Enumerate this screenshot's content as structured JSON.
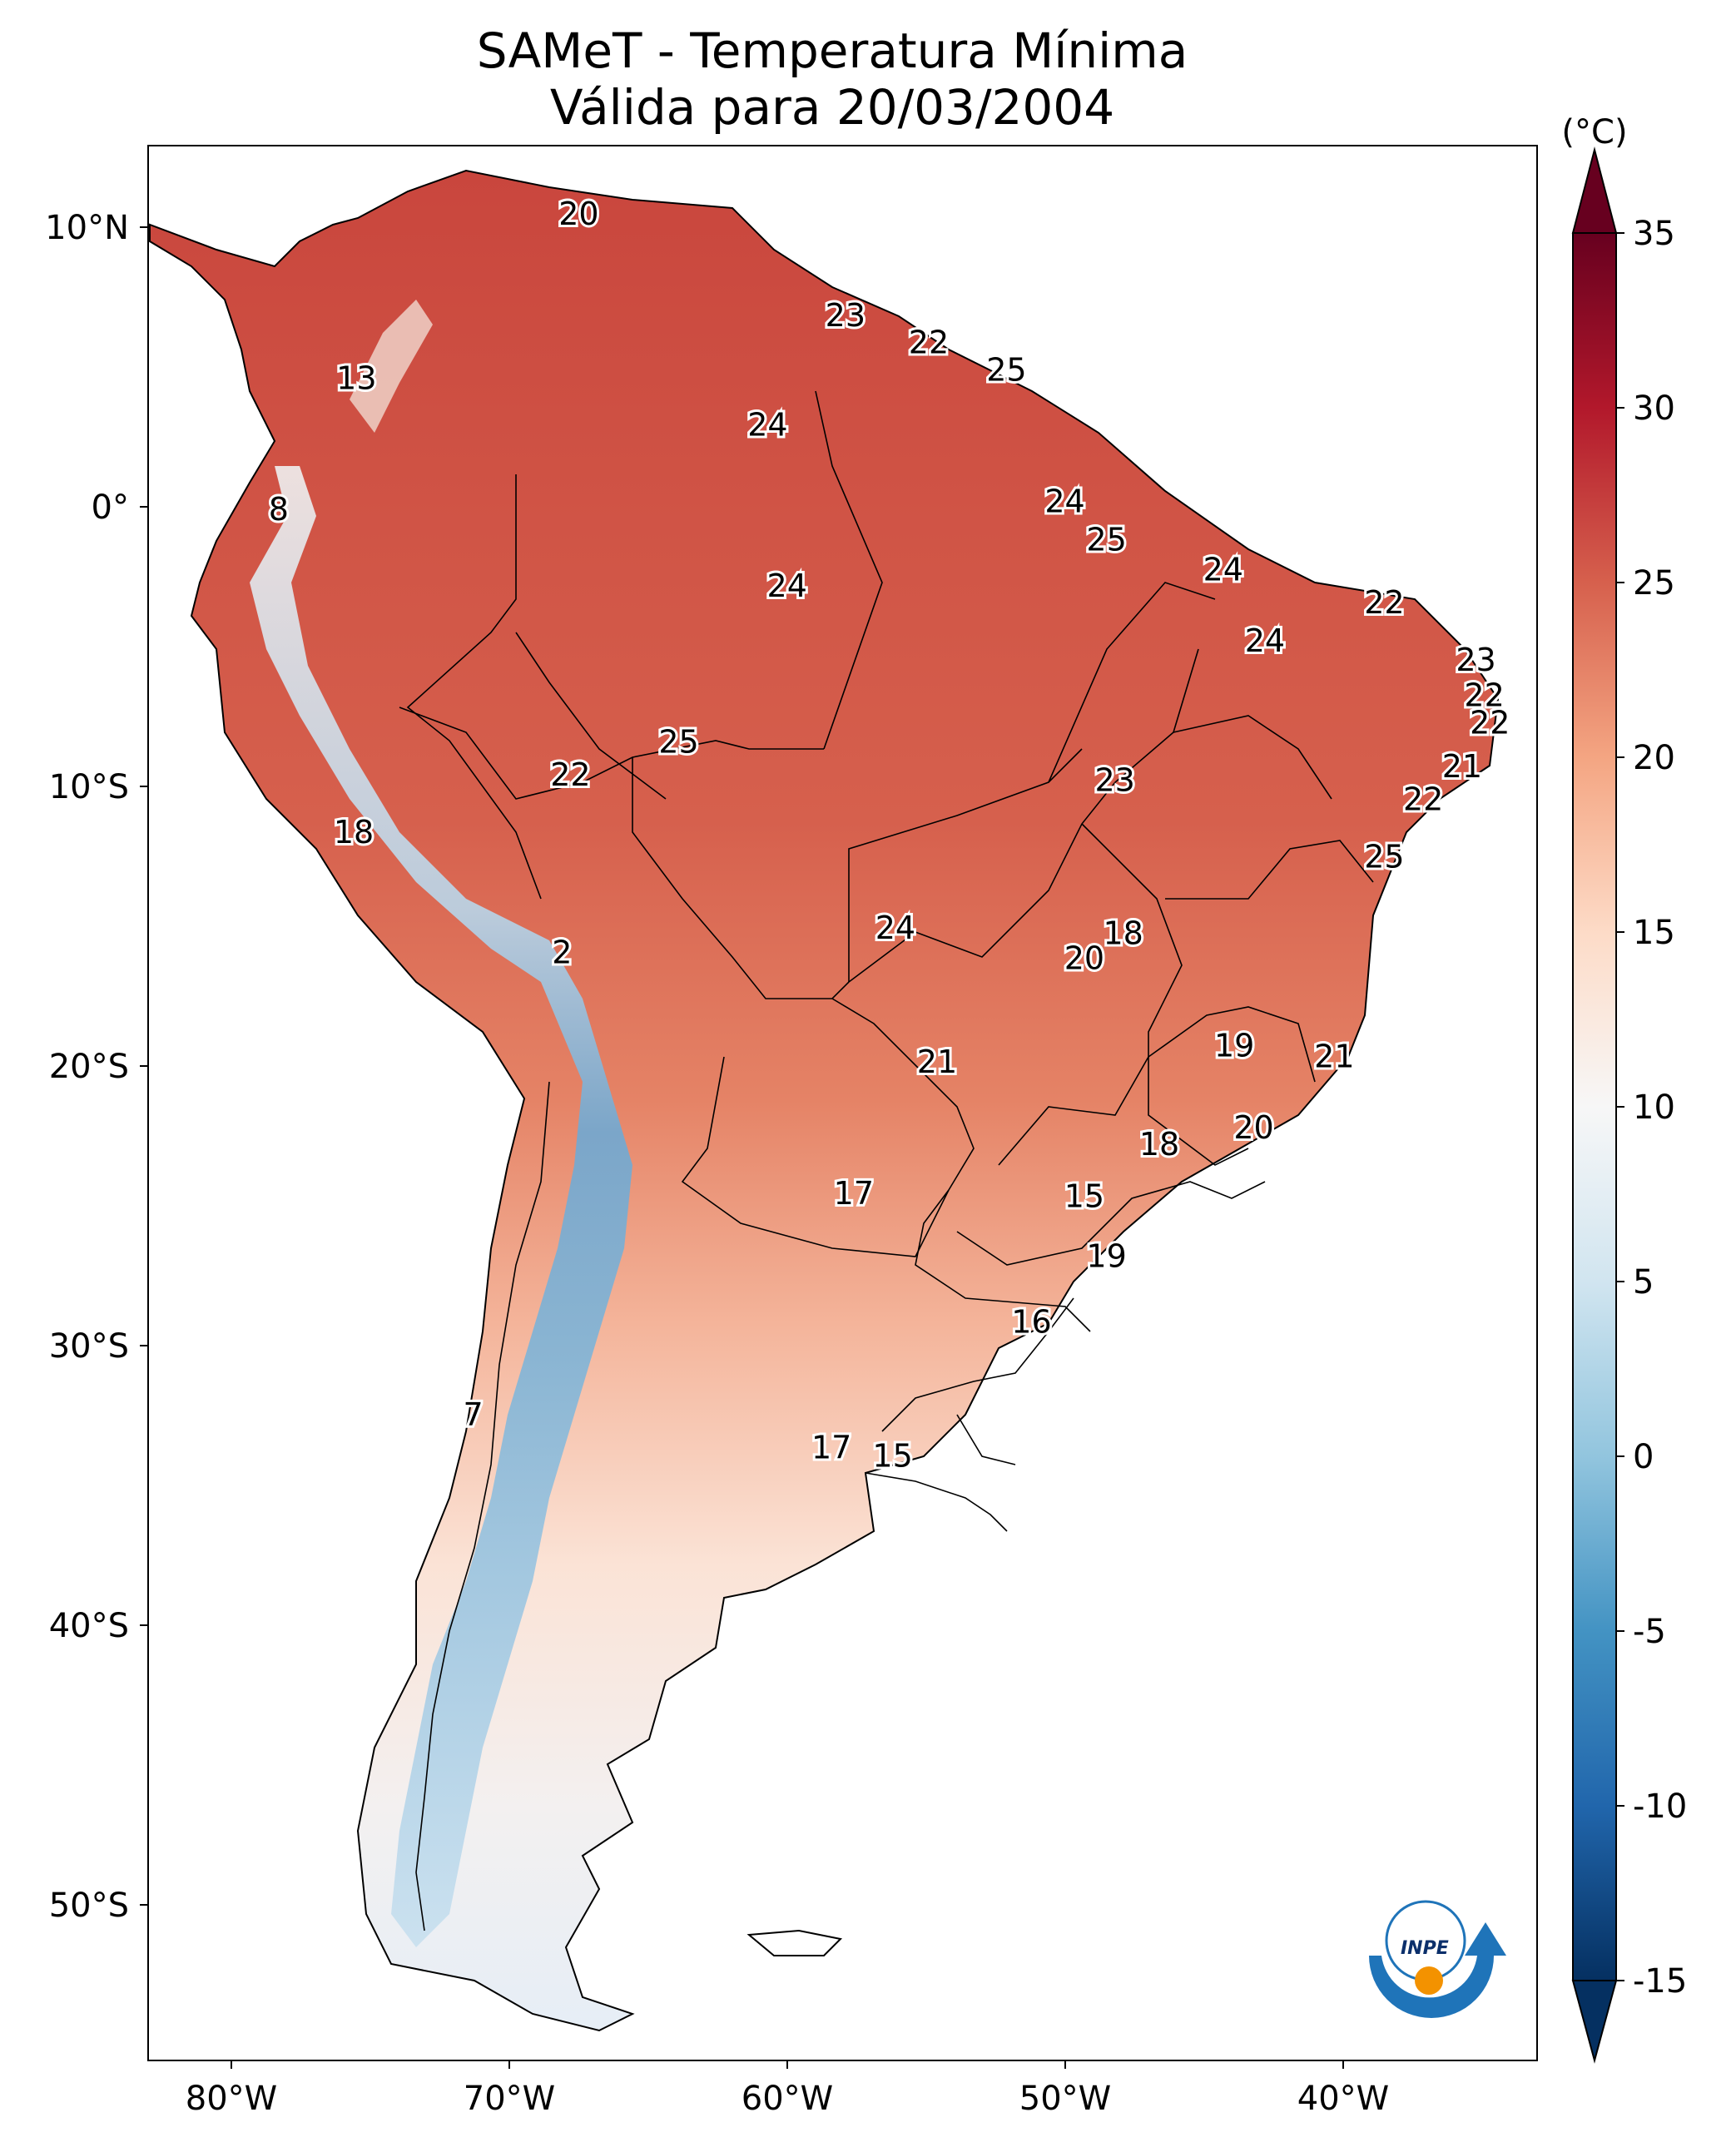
{
  "title": "SAMeT - Temperatura Mínima",
  "subtitle": "Válida para 20/03/2004",
  "colorbar": {
    "unit": "(°C)",
    "ticks": [
      "35",
      "30",
      "25",
      "20",
      "15",
      "10",
      "5",
      "0",
      "-5",
      "-10",
      "-15"
    ],
    "colors": [
      "#053061",
      "#2166ac",
      "#4393c3",
      "#92c5de",
      "#d1e5f0",
      "#f7f7f7",
      "#fddbc7",
      "#f4a582",
      "#d6604d",
      "#b2182b",
      "#67001f"
    ]
  },
  "axes": {
    "lat_ticks": [
      "10°N",
      "0°",
      "10°S",
      "20°S",
      "30°S",
      "40°S",
      "50°S"
    ],
    "lon_ticks": [
      "80°W",
      "70°W",
      "60°W",
      "50°W",
      "40°W"
    ]
  },
  "logo": {
    "text": "INPE"
  },
  "chart_data": {
    "type": "heatmap",
    "variable": "Temperatura Mínima",
    "unit": "°C",
    "colorbar_range": [
      -15,
      35
    ],
    "lon_range": [
      -83,
      -33
    ],
    "lat_range": [
      -57,
      13
    ],
    "station_labels": [
      {
        "lon": -67.5,
        "lat": 10.5,
        "value": "20"
      },
      {
        "lon": -75.5,
        "lat": 4.5,
        "value": "13"
      },
      {
        "lon": -78.3,
        "lat": -0.3,
        "value": "8"
      },
      {
        "lon": -57.9,
        "lat": 6.8,
        "value": "23"
      },
      {
        "lon": -54.9,
        "lat": 5.8,
        "value": "22"
      },
      {
        "lon": -52.1,
        "lat": 4.8,
        "value": "25"
      },
      {
        "lon": -60.7,
        "lat": 2.8,
        "value": "24"
      },
      {
        "lon": -50.0,
        "lat": 0.0,
        "value": "24"
      },
      {
        "lon": -48.5,
        "lat": -1.4,
        "value": "25"
      },
      {
        "lon": -44.3,
        "lat": -2.5,
        "value": "24"
      },
      {
        "lon": -60.0,
        "lat": -3.1,
        "value": "24"
      },
      {
        "lon": -42.8,
        "lat": -5.1,
        "value": "24"
      },
      {
        "lon": -38.5,
        "lat": -3.7,
        "value": "22"
      },
      {
        "lon": -35.2,
        "lat": -5.8,
        "value": "23"
      },
      {
        "lon": -34.9,
        "lat": -7.1,
        "value": "22"
      },
      {
        "lon": -34.7,
        "lat": -8.1,
        "value": "22"
      },
      {
        "lon": -35.7,
        "lat": -9.7,
        "value": "21"
      },
      {
        "lon": -37.1,
        "lat": -10.9,
        "value": "22"
      },
      {
        "lon": -38.5,
        "lat": -13.0,
        "value": "25"
      },
      {
        "lon": -48.2,
        "lat": -10.2,
        "value": "23"
      },
      {
        "lon": -63.9,
        "lat": -8.8,
        "value": "25"
      },
      {
        "lon": -67.8,
        "lat": -10.0,
        "value": "22"
      },
      {
        "lon": -75.6,
        "lat": -12.1,
        "value": "18"
      },
      {
        "lon": -68.1,
        "lat": -16.5,
        "value": "2"
      },
      {
        "lon": -56.1,
        "lat": -15.6,
        "value": "24"
      },
      {
        "lon": -47.9,
        "lat": -15.8,
        "value": "18"
      },
      {
        "lon": -49.3,
        "lat": -16.7,
        "value": "20"
      },
      {
        "lon": -54.6,
        "lat": -20.5,
        "value": "21"
      },
      {
        "lon": -43.9,
        "lat": -19.9,
        "value": "19"
      },
      {
        "lon": -40.3,
        "lat": -20.3,
        "value": "21"
      },
      {
        "lon": -43.2,
        "lat": -22.9,
        "value": "20"
      },
      {
        "lon": -46.6,
        "lat": -23.5,
        "value": "18"
      },
      {
        "lon": -57.6,
        "lat": -25.3,
        "value": "17"
      },
      {
        "lon": -49.3,
        "lat": -25.4,
        "value": "15"
      },
      {
        "lon": -48.5,
        "lat": -27.6,
        "value": "19"
      },
      {
        "lon": -51.2,
        "lat": -30.0,
        "value": "16"
      },
      {
        "lon": -71.3,
        "lat": -33.4,
        "value": "7"
      },
      {
        "lon": -58.4,
        "lat": -34.6,
        "value": "17"
      },
      {
        "lon": -56.2,
        "lat": -34.9,
        "value": "15"
      }
    ]
  }
}
